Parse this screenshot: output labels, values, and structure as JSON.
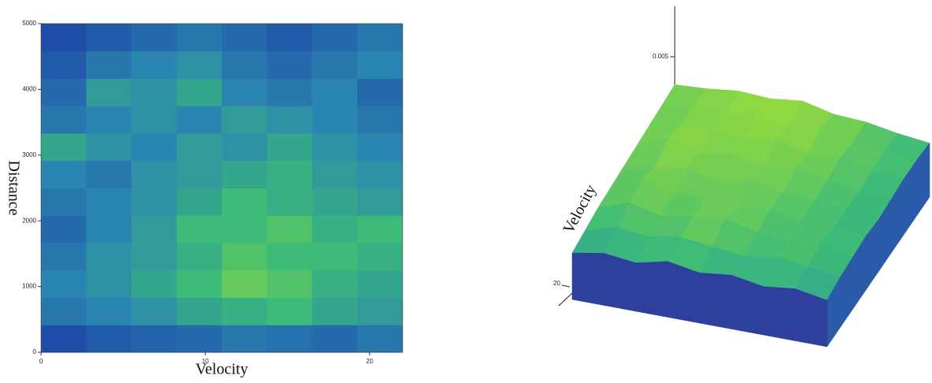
{
  "chart_data": [
    {
      "type": "heatmap",
      "xlabel": "Velocity",
      "ylabel": "Distance",
      "xlim": [
        0,
        22
      ],
      "xticks": [
        0,
        10,
        20
      ],
      "ylim": [
        0,
        5000
      ],
      "yticks": [
        0,
        1000,
        2000,
        3000,
        4000,
        5000
      ],
      "zlim": [
        0,
        0.005
      ],
      "colorscale": [
        "#25157a",
        "#1e3fa8",
        "#2a86b0",
        "#3dbb78",
        "#a6e032",
        "#e4561e"
      ],
      "z": [
        [
          0.0012,
          0.0014,
          0.0015,
          0.0016,
          0.0018,
          0.0017,
          0.0016,
          0.0018
        ],
        [
          0.0018,
          0.002,
          0.0022,
          0.0026,
          0.0028,
          0.003,
          0.0026,
          0.0024
        ],
        [
          0.002,
          0.0022,
          0.0026,
          0.003,
          0.0034,
          0.0032,
          0.0028,
          0.0026
        ],
        [
          0.0018,
          0.0022,
          0.0024,
          0.0028,
          0.0032,
          0.003,
          0.003,
          0.0028
        ],
        [
          0.0016,
          0.002,
          0.0024,
          0.003,
          0.003,
          0.0032,
          0.0028,
          0.003
        ],
        [
          0.0018,
          0.002,
          0.0022,
          0.0026,
          0.003,
          0.0028,
          0.0026,
          0.0024
        ],
        [
          0.002,
          0.0018,
          0.0022,
          0.0024,
          0.0026,
          0.0028,
          0.0024,
          0.0022
        ],
        [
          0.0026,
          0.0022,
          0.002,
          0.0024,
          0.0022,
          0.0026,
          0.0022,
          0.002
        ],
        [
          0.0018,
          0.002,
          0.0022,
          0.002,
          0.0024,
          0.0022,
          0.002,
          0.0018
        ],
        [
          0.0016,
          0.0024,
          0.0022,
          0.0026,
          0.002,
          0.0018,
          0.002,
          0.0016
        ],
        [
          0.0014,
          0.0018,
          0.002,
          0.0022,
          0.0018,
          0.0016,
          0.0018,
          0.002
        ],
        [
          0.0012,
          0.0014,
          0.0016,
          0.0018,
          0.0016,
          0.0014,
          0.0016,
          0.0018
        ]
      ]
    },
    {
      "type": "surface3d",
      "ylabel": "Velocity",
      "yticks": [
        20
      ],
      "zlim": [
        0,
        0.005
      ],
      "zticks": [
        0.005
      ],
      "colorscale": [
        "#25157a",
        "#1e3fa8",
        "#2a86b0",
        "#3dbb78",
        "#a6e032",
        "#e4561e"
      ],
      "z": [
        [
          0.0025,
          0.0028,
          0.0026,
          0.003,
          0.0027,
          0.0029,
          0.0026,
          0.0028,
          0.0025
        ],
        [
          0.0027,
          0.0032,
          0.003,
          0.0033,
          0.0031,
          0.0029,
          0.0032,
          0.003,
          0.0027
        ],
        [
          0.0029,
          0.0035,
          0.0031,
          0.0034,
          0.0036,
          0.0032,
          0.003,
          0.0033,
          0.0028
        ],
        [
          0.003,
          0.0038,
          0.0033,
          0.0035,
          0.0032,
          0.0034,
          0.0031,
          0.003,
          0.0029
        ],
        [
          0.0031,
          0.0034,
          0.0036,
          0.0033,
          0.0037,
          0.0033,
          0.0032,
          0.0031,
          0.0028
        ],
        [
          0.0032,
          0.004,
          0.0035,
          0.0038,
          0.0034,
          0.0036,
          0.0033,
          0.003,
          0.0029
        ],
        [
          0.0033,
          0.0036,
          0.0037,
          0.0035,
          0.0039,
          0.0034,
          0.0035,
          0.0031,
          0.003
        ],
        [
          0.0034,
          0.0037,
          0.0036,
          0.004,
          0.0036,
          0.0038,
          0.0033,
          0.0032,
          0.003
        ],
        [
          0.0035,
          0.0036,
          0.0038,
          0.0037,
          0.0039,
          0.0035,
          0.0034,
          0.0031,
          0.0029
        ]
      ]
    }
  ]
}
